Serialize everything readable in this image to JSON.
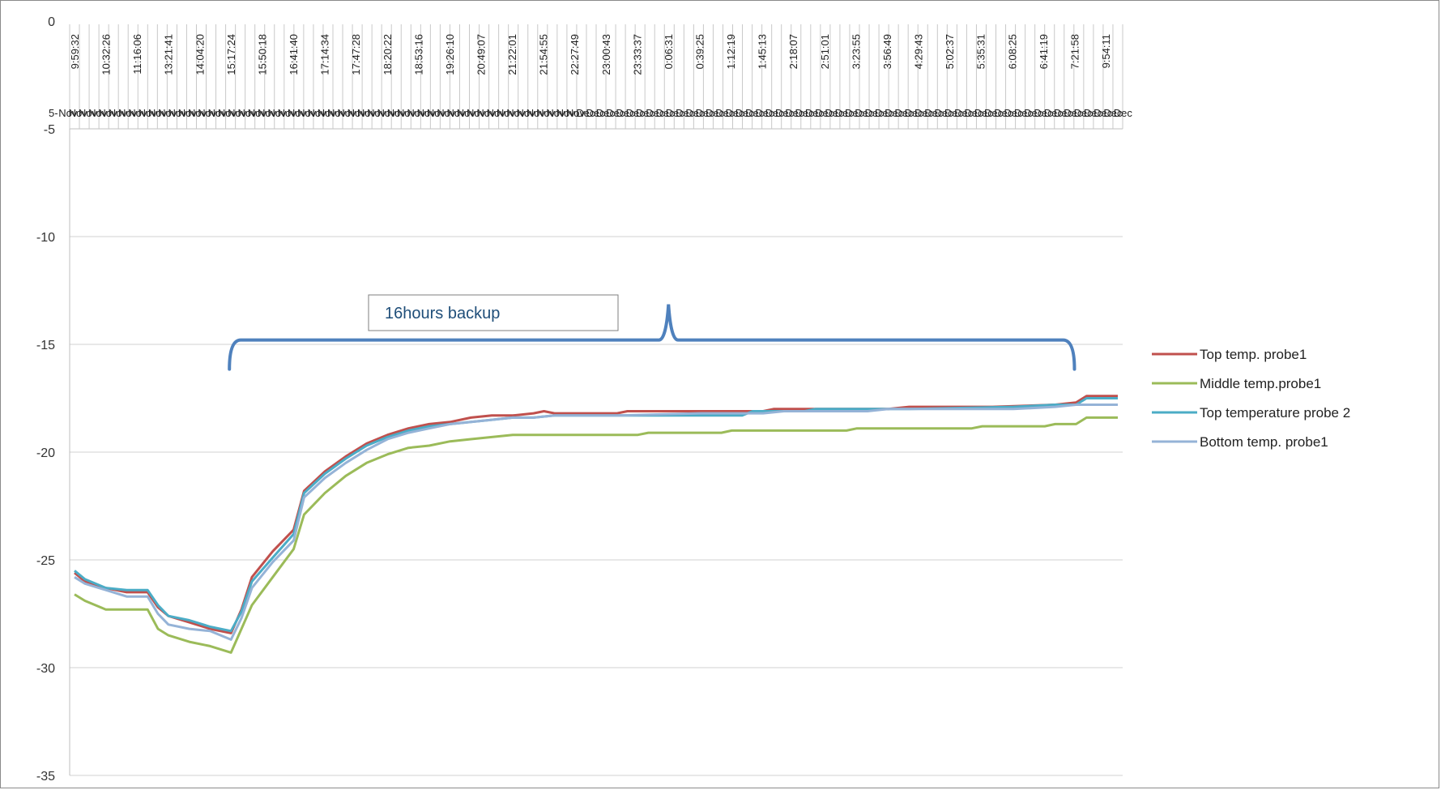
{
  "chart_data": {
    "type": "line",
    "ylim": [
      -35,
      0
    ],
    "yticks": [
      0,
      -5,
      -10,
      -15,
      -20,
      -25,
      -30,
      -35
    ],
    "ytick_labels": [
      "0",
      "-5",
      "-10",
      "-15",
      "-20",
      "-25",
      "-30",
      "-35"
    ],
    "x_time_labels": [
      "9:59:32",
      "10:32:26",
      "11:16:06",
      "13:21:41",
      "14:04:20",
      "15:17:24",
      "15:50:18",
      "16:41:40",
      "17:14:34",
      "17:47:28",
      "18:20:22",
      "18:53:16",
      "19:26:10",
      "20:49:07",
      "21:22:01",
      "21:54:55",
      "22:27:49",
      "23:00:43",
      "23:33:37",
      "0:06:31",
      "0:39:25",
      "1:12:19",
      "1:45:13",
      "2:18:07",
      "2:51:01",
      "3:23:55",
      "3:56:49",
      "4:29:43",
      "5:02:37",
      "5:35:31",
      "6:08:25",
      "6:41:19",
      "7:21:58",
      "9:54:11"
    ],
    "x_date_labels": [
      "5-",
      "Nov",
      "Nov",
      "Nov",
      "Nov",
      "Nov",
      "Nov",
      "Nov",
      "Nov",
      "Nov",
      "Nov",
      "Nov",
      "Nov",
      "Nov",
      "Nov",
      "Nov",
      "Nov",
      "Nov",
      "Nov",
      "Nov",
      "Nov",
      "Nov",
      "Nov",
      "Nov",
      "Nov",
      "Nov",
      "Nov",
      "Nov",
      "Nov",
      "Nov",
      "Nov",
      "Nov",
      "Nov",
      "Nov",
      "Nov",
      "Nov",
      "Nov",
      "Nov",
      "Nov",
      "Nov",
      "Nov",
      "Nov",
      "Nov",
      "Nov",
      "Nov",
      "Nov",
      "Nov",
      "Nov",
      "Nov",
      "Nov",
      "Nov",
      "Nov",
      "Nov",
      "Dec",
      "Dec",
      "Dec",
      "Dec",
      "Dec",
      "Dec",
      "Dec",
      "Dec",
      "Dec",
      "Dec",
      "Dec",
      "Dec",
      "Dec",
      "Dec",
      "Dec",
      "Dec",
      "Dec",
      "Dec",
      "Dec",
      "Dec",
      "Dec",
      "Dec",
      "Dec",
      "Dec",
      "Dec",
      "Dec",
      "Dec",
      "Dec",
      "Dec",
      "Dec",
      "Dec",
      "Dec",
      "Dec",
      "Dec",
      "Dec",
      "Dec",
      "Dec",
      "Dec",
      "Dec",
      "Dec",
      "Dec",
      "Dec",
      "Dec",
      "Dec",
      "Dec",
      "Dec",
      "Dec",
      "Dec",
      "Dec",
      "Dec",
      "Dec",
      "Dec",
      "Dec",
      "Dec",
      "Dec"
    ],
    "x_point_count": 101,
    "annotation": {
      "text": "16hours  backup",
      "x_start": 15,
      "x_end": 96,
      "apex": 56
    },
    "series": [
      {
        "name": "Top temp. probe1",
        "color": "#c0504d",
        "points": [
          [
            0,
            -25.6
          ],
          [
            1,
            -26.0
          ],
          [
            3,
            -26.3
          ],
          [
            5,
            -26.5
          ],
          [
            7,
            -26.5
          ],
          [
            8,
            -27.2
          ],
          [
            9,
            -27.6
          ],
          [
            11,
            -27.9
          ],
          [
            13,
            -28.2
          ],
          [
            15,
            -28.4
          ],
          [
            16,
            -27.3
          ],
          [
            17,
            -25.8
          ],
          [
            19,
            -24.6
          ],
          [
            21,
            -23.6
          ],
          [
            22,
            -21.8
          ],
          [
            24,
            -20.9
          ],
          [
            26,
            -20.2
          ],
          [
            28,
            -19.6
          ],
          [
            30,
            -19.2
          ],
          [
            32,
            -18.9
          ],
          [
            34,
            -18.7
          ],
          [
            36,
            -18.6
          ],
          [
            38,
            -18.4
          ],
          [
            40,
            -18.3
          ],
          [
            42,
            -18.3
          ],
          [
            44,
            -18.2
          ],
          [
            45,
            -18.1
          ],
          [
            46,
            -18.2
          ],
          [
            52,
            -18.2
          ],
          [
            53,
            -18.1
          ],
          [
            60,
            -18.1
          ],
          [
            66,
            -18.1
          ],
          [
            67,
            -18.0
          ],
          [
            78,
            -18.0
          ],
          [
            80,
            -17.9
          ],
          [
            88,
            -17.9
          ],
          [
            94,
            -17.8
          ],
          [
            96,
            -17.7
          ],
          [
            97,
            -17.4
          ],
          [
            100,
            -17.4
          ]
        ]
      },
      {
        "name": "Middle temp.probe1",
        "color": "#9bbb59",
        "points": [
          [
            0,
            -26.6
          ],
          [
            1,
            -26.9
          ],
          [
            3,
            -27.3
          ],
          [
            5,
            -27.3
          ],
          [
            7,
            -27.3
          ],
          [
            8,
            -28.2
          ],
          [
            9,
            -28.5
          ],
          [
            11,
            -28.8
          ],
          [
            13,
            -29.0
          ],
          [
            15,
            -29.3
          ],
          [
            16,
            -28.2
          ],
          [
            17,
            -27.1
          ],
          [
            19,
            -25.8
          ],
          [
            21,
            -24.5
          ],
          [
            22,
            -22.9
          ],
          [
            24,
            -21.9
          ],
          [
            26,
            -21.1
          ],
          [
            28,
            -20.5
          ],
          [
            30,
            -20.1
          ],
          [
            32,
            -19.8
          ],
          [
            34,
            -19.7
          ],
          [
            36,
            -19.5
          ],
          [
            38,
            -19.4
          ],
          [
            40,
            -19.3
          ],
          [
            42,
            -19.2
          ],
          [
            44,
            -19.2
          ],
          [
            48,
            -19.2
          ],
          [
            54,
            -19.2
          ],
          [
            55,
            -19.1
          ],
          [
            62,
            -19.1
          ],
          [
            63,
            -19.0
          ],
          [
            74,
            -19.0
          ],
          [
            75,
            -18.9
          ],
          [
            86,
            -18.9
          ],
          [
            87,
            -18.8
          ],
          [
            93,
            -18.8
          ],
          [
            94,
            -18.7
          ],
          [
            96,
            -18.7
          ],
          [
            97,
            -18.4
          ],
          [
            100,
            -18.4
          ]
        ]
      },
      {
        "name": "Top temperature probe 2",
        "color": "#4bacc6",
        "points": [
          [
            0,
            -25.5
          ],
          [
            1,
            -25.9
          ],
          [
            3,
            -26.3
          ],
          [
            5,
            -26.4
          ],
          [
            7,
            -26.4
          ],
          [
            8,
            -27.1
          ],
          [
            9,
            -27.6
          ],
          [
            11,
            -27.8
          ],
          [
            13,
            -28.1
          ],
          [
            15,
            -28.3
          ],
          [
            16,
            -27.4
          ],
          [
            17,
            -26.0
          ],
          [
            19,
            -24.9
          ],
          [
            21,
            -23.8
          ],
          [
            22,
            -21.9
          ],
          [
            24,
            -21.0
          ],
          [
            26,
            -20.3
          ],
          [
            28,
            -19.7
          ],
          [
            30,
            -19.3
          ],
          [
            32,
            -19.0
          ],
          [
            34,
            -18.8
          ],
          [
            36,
            -18.7
          ],
          [
            38,
            -18.6
          ],
          [
            40,
            -18.5
          ],
          [
            42,
            -18.4
          ],
          [
            44,
            -18.4
          ],
          [
            46,
            -18.3
          ],
          [
            52,
            -18.3
          ],
          [
            54,
            -18.3
          ],
          [
            60,
            -18.3
          ],
          [
            64,
            -18.3
          ],
          [
            65,
            -18.1
          ],
          [
            70,
            -18.1
          ],
          [
            71,
            -18.0
          ],
          [
            80,
            -18.0
          ],
          [
            90,
            -17.9
          ],
          [
            94,
            -17.8
          ],
          [
            95,
            -17.8
          ],
          [
            96,
            -17.8
          ],
          [
            97,
            -17.5
          ],
          [
            100,
            -17.5
          ]
        ]
      },
      {
        "name": "Bottom temp. probe1",
        "color": "#95b3d7",
        "points": [
          [
            0,
            -25.8
          ],
          [
            1,
            -26.1
          ],
          [
            3,
            -26.4
          ],
          [
            5,
            -26.7
          ],
          [
            7,
            -26.7
          ],
          [
            8,
            -27.5
          ],
          [
            9,
            -28.0
          ],
          [
            11,
            -28.2
          ],
          [
            13,
            -28.3
          ],
          [
            15,
            -28.7
          ],
          [
            16,
            -27.7
          ],
          [
            17,
            -26.3
          ],
          [
            19,
            -25.1
          ],
          [
            21,
            -24.1
          ],
          [
            22,
            -22.1
          ],
          [
            24,
            -21.2
          ],
          [
            26,
            -20.5
          ],
          [
            28,
            -19.9
          ],
          [
            30,
            -19.4
          ],
          [
            32,
            -19.1
          ],
          [
            34,
            -18.9
          ],
          [
            36,
            -18.7
          ],
          [
            38,
            -18.6
          ],
          [
            40,
            -18.5
          ],
          [
            42,
            -18.4
          ],
          [
            44,
            -18.4
          ],
          [
            46,
            -18.3
          ],
          [
            52,
            -18.3
          ],
          [
            60,
            -18.2
          ],
          [
            66,
            -18.2
          ],
          [
            68,
            -18.1
          ],
          [
            76,
            -18.1
          ],
          [
            78,
            -18.0
          ],
          [
            90,
            -18.0
          ],
          [
            94,
            -17.9
          ],
          [
            96,
            -17.8
          ],
          [
            97,
            -17.8
          ],
          [
            100,
            -17.8
          ]
        ]
      }
    ]
  }
}
